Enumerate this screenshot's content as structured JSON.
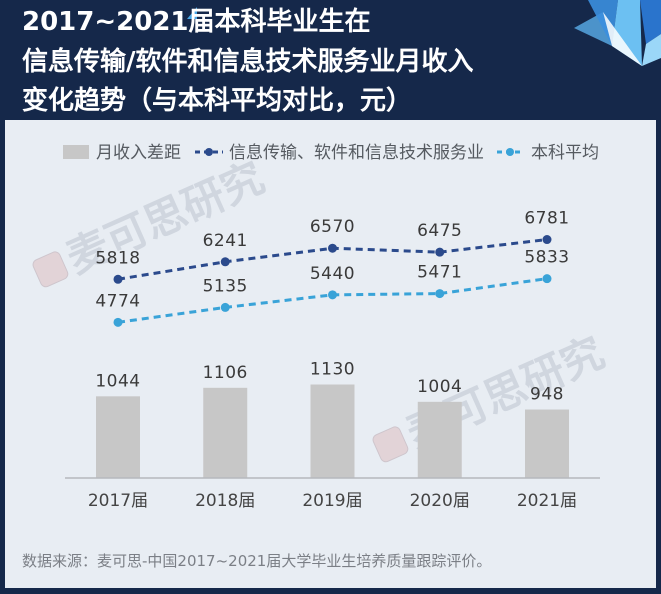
{
  "colors": {
    "header_bg": "#15284a",
    "panel_bg": "#e8edf3"
  },
  "watermark": "麦可思研究",
  "chart_data": {
    "type": "bar",
    "title": [
      "2017~2021届本科毕业生在",
      "信息传输/软件和信息技术服务业月收入",
      "变化趋势（与本科平均对比，元）"
    ],
    "categories": [
      "2017届",
      "2018届",
      "2019届",
      "2020届",
      "2021届"
    ],
    "series": [
      {
        "name": "月收入差距",
        "type": "bar",
        "axis": "secondary",
        "color": "#c7c7c7",
        "values": [
          1044,
          1106,
          1130,
          1004,
          948
        ]
      },
      {
        "name": "信息传输、软件和信息技术服务业",
        "type": "line",
        "axis": "primary",
        "color": "#2b4a8c",
        "values": [
          5818,
          6241,
          6570,
          6475,
          6781
        ]
      },
      {
        "name": "本科平均",
        "type": "line",
        "axis": "primary",
        "color": "#39a3d8",
        "values": [
          4774,
          5135,
          5440,
          5471,
          5833
        ]
      }
    ],
    "ylim": [
      1000,
      9000
    ],
    "y2lim": [
      450,
      2850
    ],
    "grid": false,
    "legend": "top",
    "data_labels": true
  },
  "footer": {
    "source": "数据来源：麦可思-中国2017~2021届大学毕业生培养质量跟踪评价。"
  }
}
